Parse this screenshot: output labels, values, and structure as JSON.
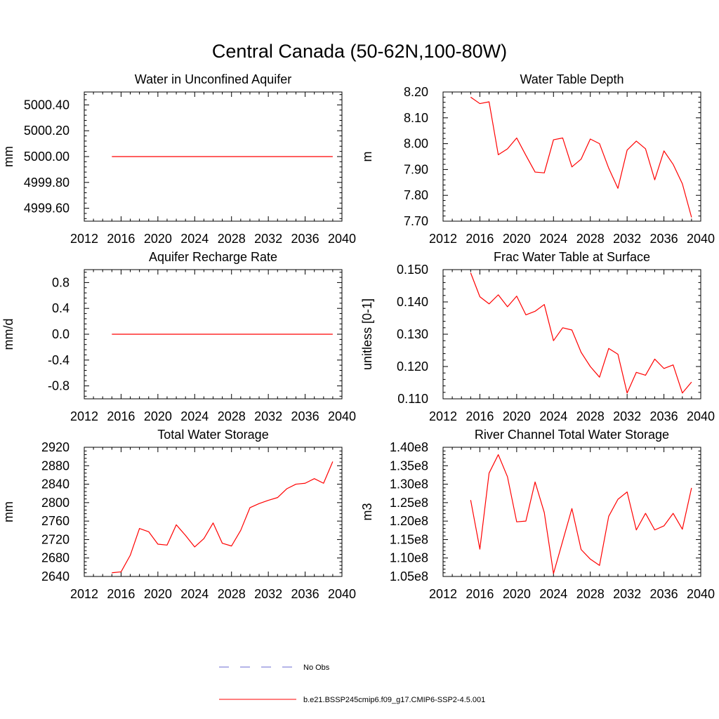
{
  "figure_title": "Central Canada (50-62N,100-80W)",
  "colors": {
    "model": "#ff0000",
    "obs": "#6a6ad0",
    "axis": "#000000"
  },
  "legend": {
    "items": [
      {
        "label": "No Obs",
        "style": "dashed",
        "color": "#6a6ad0"
      },
      {
        "label": "b.e21.BSSP245cmip6.f09_g17.CMIP6-SSP2-4.5.001",
        "style": "solid",
        "color": "#ff0000"
      }
    ]
  },
  "chart_data": [
    {
      "type": "line",
      "title": "Water in Unconfined Aquifer",
      "ylabel": "mm",
      "xlim": [
        2012,
        2040
      ],
      "xticks": [
        2012,
        2016,
        2020,
        2024,
        2028,
        2032,
        2036,
        2040
      ],
      "ylim": [
        4999.5,
        5000.5
      ],
      "yticks": [
        4999.6,
        4999.8,
        5000.0,
        5000.2,
        5000.4
      ],
      "ytick_labels": [
        "4999.60",
        "4999.80",
        "5000.00",
        "5000.20",
        "5000.40"
      ],
      "x": [
        2015,
        2016,
        2017,
        2018,
        2019,
        2020,
        2021,
        2022,
        2023,
        2024,
        2025,
        2026,
        2027,
        2028,
        2029,
        2030,
        2031,
        2032,
        2033,
        2034,
        2035,
        2036,
        2037,
        2038,
        2039
      ],
      "series": [
        {
          "values": [
            5000,
            5000,
            5000,
            5000,
            5000,
            5000,
            5000,
            5000,
            5000,
            5000,
            5000,
            5000,
            5000,
            5000,
            5000,
            5000,
            5000,
            5000,
            5000,
            5000,
            5000,
            5000,
            5000,
            5000,
            5000
          ]
        }
      ]
    },
    {
      "type": "line",
      "title": "Water Table Depth",
      "ylabel": "m",
      "xlim": [
        2012,
        2040
      ],
      "xticks": [
        2012,
        2016,
        2020,
        2024,
        2028,
        2032,
        2036,
        2040
      ],
      "ylim": [
        7.7,
        8.2
      ],
      "yticks": [
        7.7,
        7.8,
        7.9,
        8.0,
        8.1,
        8.2
      ],
      "ytick_labels": [
        "7.70",
        "7.80",
        "7.90",
        "8.00",
        "8.10",
        "8.20"
      ],
      "x": [
        2015,
        2016,
        2017,
        2018,
        2019,
        2020,
        2021,
        2022,
        2023,
        2024,
        2025,
        2026,
        2027,
        2028,
        2029,
        2030,
        2031,
        2032,
        2033,
        2034,
        2035,
        2036,
        2037,
        2038,
        2039
      ],
      "series": [
        {
          "values": [
            8.18,
            8.155,
            8.162,
            7.957,
            7.98,
            8.022,
            7.955,
            7.89,
            7.887,
            8.015,
            8.022,
            7.91,
            7.94,
            8.018,
            8.0,
            7.905,
            7.827,
            7.975,
            8.01,
            7.98,
            7.86,
            7.972,
            7.92,
            7.845,
            7.715
          ]
        }
      ]
    },
    {
      "type": "line",
      "title": "Aquifer Recharge Rate",
      "ylabel": "mm/d",
      "xlim": [
        2012,
        2040
      ],
      "xticks": [
        2012,
        2016,
        2020,
        2024,
        2028,
        2032,
        2036,
        2040
      ],
      "ylim": [
        -1.0,
        1.0
      ],
      "yticks": [
        -0.8,
        -0.4,
        0.0,
        0.4,
        0.8
      ],
      "ytick_labels": [
        "-0.8",
        "-0.4",
        "0.0",
        "0.4",
        "0.8"
      ],
      "x": [
        2015,
        2016,
        2017,
        2018,
        2019,
        2020,
        2021,
        2022,
        2023,
        2024,
        2025,
        2026,
        2027,
        2028,
        2029,
        2030,
        2031,
        2032,
        2033,
        2034,
        2035,
        2036,
        2037,
        2038,
        2039
      ],
      "series": [
        {
          "values": [
            0,
            0,
            0,
            0,
            0,
            0,
            0,
            0,
            0,
            0,
            0,
            0,
            0,
            0,
            0,
            0,
            0,
            0,
            0,
            0,
            0,
            0,
            0,
            0,
            0
          ]
        }
      ]
    },
    {
      "type": "line",
      "title": "Frac Water Table at Surface",
      "ylabel": "unitless [0-1]",
      "xlim": [
        2012,
        2040
      ],
      "xticks": [
        2012,
        2016,
        2020,
        2024,
        2028,
        2032,
        2036,
        2040
      ],
      "ylim": [
        0.11,
        0.15
      ],
      "yticks": [
        0.11,
        0.12,
        0.13,
        0.14,
        0.15
      ],
      "ytick_labels": [
        "0.110",
        "0.120",
        "0.130",
        "0.140",
        "0.150"
      ],
      "x": [
        2015,
        2016,
        2017,
        2018,
        2019,
        2020,
        2021,
        2022,
        2023,
        2024,
        2025,
        2026,
        2027,
        2028,
        2029,
        2030,
        2031,
        2032,
        2033,
        2034,
        2035,
        2036,
        2037,
        2038,
        2039
      ],
      "series": [
        {
          "values": [
            0.149,
            0.1416,
            0.1394,
            0.1422,
            0.1385,
            0.1418,
            0.136,
            0.1371,
            0.1392,
            0.128,
            0.132,
            0.1313,
            0.1244,
            0.12,
            0.1167,
            0.1256,
            0.1238,
            0.1118,
            0.1182,
            0.1173,
            0.1223,
            0.1194,
            0.1205,
            0.1118,
            0.1152
          ]
        }
      ]
    },
    {
      "type": "line",
      "title": "Total Water Storage",
      "ylabel": "mm",
      "xlim": [
        2012,
        2040
      ],
      "xticks": [
        2012,
        2016,
        2020,
        2024,
        2028,
        2032,
        2036,
        2040
      ],
      "ylim": [
        2640,
        2920
      ],
      "yticks": [
        2640,
        2680,
        2720,
        2760,
        2800,
        2840,
        2880,
        2920
      ],
      "ytick_labels": [
        "2640",
        "2680",
        "2720",
        "2760",
        "2800",
        "2840",
        "2880",
        "2920"
      ],
      "x": [
        2015,
        2016,
        2017,
        2018,
        2019,
        2020,
        2021,
        2022,
        2023,
        2024,
        2025,
        2026,
        2027,
        2028,
        2029,
        2030,
        2031,
        2032,
        2033,
        2034,
        2035,
        2036,
        2037,
        2038,
        2039
      ],
      "series": [
        {
          "values": [
            2648,
            2650,
            2686,
            2744,
            2737,
            2710,
            2708,
            2752,
            2729,
            2704,
            2722,
            2756,
            2712,
            2706,
            2740,
            2789,
            2798,
            2805,
            2811,
            2830,
            2840,
            2842,
            2852,
            2842,
            2889
          ]
        }
      ]
    },
    {
      "type": "line",
      "title": "River Channel Total Water Storage",
      "ylabel": "m3",
      "xlim": [
        2012,
        2040
      ],
      "xticks": [
        2012,
        2016,
        2020,
        2024,
        2028,
        2032,
        2036,
        2040
      ],
      "ylim": [
        105000000,
        140000000
      ],
      "yticks": [
        105000000,
        110000000,
        115000000,
        120000000,
        125000000,
        130000000,
        135000000,
        140000000
      ],
      "ytick_labels": [
        "1.05e8",
        "1.10e8",
        "1.15e8",
        "1.20e8",
        "1.25e8",
        "1.30e8",
        "1.35e8",
        "1.40e8"
      ],
      "x": [
        2015,
        2016,
        2017,
        2018,
        2019,
        2020,
        2021,
        2022,
        2023,
        2024,
        2025,
        2026,
        2027,
        2028,
        2029,
        2030,
        2031,
        2032,
        2033,
        2034,
        2035,
        2036,
        2037,
        2038,
        2039
      ],
      "series": [
        {
          "values": [
            125700000,
            112400000,
            133000000,
            138000000,
            132000000,
            119800000,
            120000000,
            130600000,
            122300000,
            105800000,
            114600000,
            123400000,
            112300000,
            109700000,
            108000000,
            121300000,
            125900000,
            127900000,
            117600000,
            122100000,
            117600000,
            118700000,
            122100000,
            117800000,
            129000000
          ]
        }
      ]
    }
  ]
}
